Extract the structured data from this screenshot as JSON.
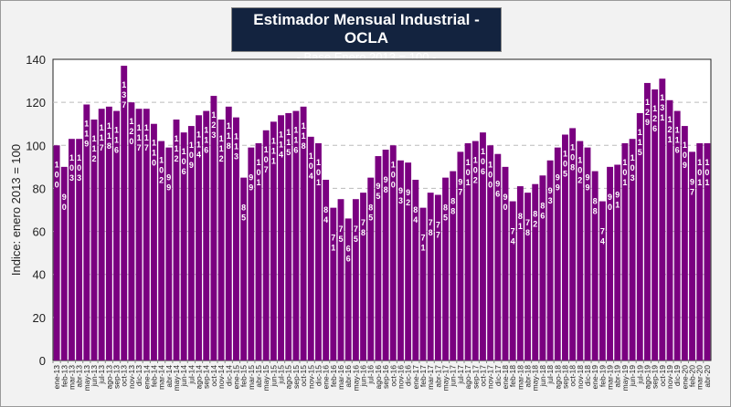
{
  "chart_data": {
    "type": "bar",
    "title": "Estimador Mensual Industrial - OCLA",
    "subtitle": "- Base Enero 2013 = 100 -",
    "xlabel": "",
    "ylabel": "Indice: enero 2013 = 100",
    "ylim": [
      0,
      140
    ],
    "yticks": [
      0,
      20,
      40,
      60,
      80,
      100,
      120,
      140
    ],
    "grid": "horizontal-dashed",
    "legend": "none",
    "bar_color": "#7a0080",
    "label_color": "#ffffff",
    "categories": [
      "ene-13",
      "feb-13",
      "mar-13",
      "abr-13",
      "may-13",
      "jun-13",
      "jul-13",
      "ago-13",
      "sep-13",
      "oct-13",
      "nov-13",
      "dic-13",
      "ene-14",
      "feb-14",
      "mar-14",
      "abr-14",
      "may-14",
      "jun-14",
      "jul-14",
      "ago-14",
      "sep-14",
      "oct-14",
      "nov-14",
      "dic-14",
      "ene-15",
      "feb-15",
      "mar-15",
      "abr-15",
      "may-15",
      "jun-15",
      "jul-15",
      "ago-15",
      "sep-15",
      "oct-15",
      "nov-15",
      "dic-15",
      "ene-16",
      "feb-16",
      "mar-16",
      "abr-16",
      "may-16",
      "jun-16",
      "jul-16",
      "ago-16",
      "sep-16",
      "oct-16",
      "nov-16",
      "dic-16",
      "ene-17",
      "feb-17",
      "mar-17",
      "abr-17",
      "may-17",
      "jun-17",
      "jul-17",
      "ago-17",
      "sep-17",
      "oct-17",
      "nov-17",
      "dic-17",
      "ene-18",
      "feb-18",
      "mar-18",
      "abr-18",
      "may-18",
      "jun-18",
      "jul-18",
      "ago-18",
      "sep-18",
      "oct-18",
      "nov-18",
      "dic-18",
      "ene-19",
      "feb-19",
      "mar-19",
      "abr-19",
      "may-19",
      "jun-19",
      "jul-19",
      "ago-19",
      "sep-19",
      "oct-19",
      "nov-19",
      "dic-19",
      "ene-20",
      "feb-20",
      "mar-20",
      "abr-20"
    ],
    "values": [
      100,
      90,
      103,
      103,
      119,
      112,
      117,
      118,
      116,
      137,
      120,
      117,
      117,
      110,
      102,
      99,
      112,
      106,
      109,
      114,
      116,
      123,
      112,
      118,
      113,
      85,
      99,
      101,
      107,
      111,
      114,
      115,
      116,
      118,
      104,
      101,
      84,
      71,
      75,
      66,
      75,
      78,
      85,
      95,
      98,
      100,
      93,
      92,
      84,
      71,
      78,
      77,
      85,
      88,
      97,
      101,
      102,
      106,
      100,
      96,
      90,
      74,
      81,
      78,
      82,
      86,
      93,
      99,
      105,
      108,
      102,
      99,
      88,
      74,
      90,
      91,
      101,
      103,
      115,
      129,
      126,
      131,
      121,
      116,
      109,
      97,
      101,
      101
    ]
  }
}
